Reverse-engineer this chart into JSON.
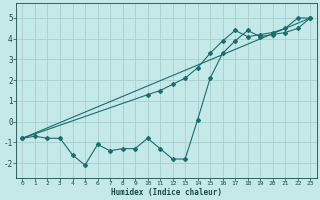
{
  "xlabel": "Humidex (Indice chaleur)",
  "bg_color": "#c5e8e8",
  "line_color": "#1a6e6e",
  "grid_color": "#a8cece",
  "xlim": [
    -0.5,
    23.5
  ],
  "ylim": [
    -2.7,
    5.7
  ],
  "xticks": [
    0,
    1,
    2,
    3,
    4,
    5,
    6,
    7,
    8,
    9,
    10,
    11,
    12,
    13,
    14,
    15,
    16,
    17,
    18,
    19,
    20,
    21,
    22,
    23
  ],
  "yticks": [
    -2,
    -1,
    0,
    1,
    2,
    3,
    4,
    5
  ],
  "line1_x": [
    0,
    1,
    2,
    3,
    4,
    5,
    6,
    7,
    8,
    9,
    10,
    11,
    12,
    13,
    14,
    15,
    16,
    17,
    18,
    19,
    20,
    21,
    22,
    23
  ],
  "line1_y": [
    -0.8,
    -0.7,
    -0.8,
    -0.8,
    -1.6,
    -2.1,
    -1.1,
    -1.4,
    -1.3,
    -1.3,
    -0.8,
    -1.3,
    -1.8,
    -1.8,
    0.1,
    2.1,
    3.3,
    3.9,
    4.4,
    4.1,
    4.2,
    4.3,
    4.5,
    5.0
  ],
  "line2_x": [
    0,
    10,
    11,
    12,
    13,
    14,
    15,
    16,
    17,
    18,
    19,
    20,
    21,
    22,
    23
  ],
  "line2_y": [
    -0.8,
    1.3,
    1.5,
    1.8,
    2.1,
    2.6,
    3.3,
    3.9,
    4.4,
    4.1,
    4.2,
    4.3,
    4.5,
    5.0,
    5.0
  ],
  "line3_x": [
    0,
    23
  ],
  "line3_y": [
    -0.8,
    5.0
  ]
}
